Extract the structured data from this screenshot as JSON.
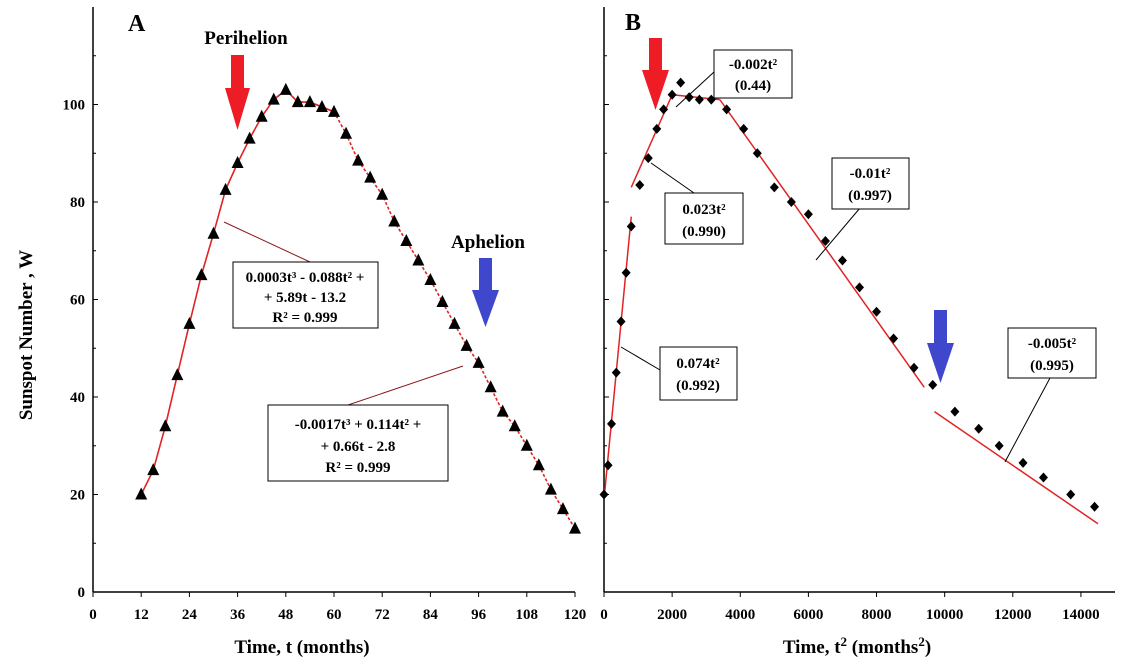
{
  "chart_data": [
    {
      "type": "scatter",
      "panel": "A",
      "xlabel": "Time, t (months)",
      "ylabel": "Sunspot Number , W",
      "xlim": [
        0,
        120
      ],
      "ylim": [
        0,
        120
      ],
      "x_ticks": [
        "0",
        "12",
        "24",
        "36",
        "48",
        "60",
        "72",
        "84",
        "96",
        "108",
        "120"
      ],
      "y_ticks": [
        "0",
        "20",
        "40",
        "60",
        "80",
        "100"
      ],
      "arrow_labels": {
        "red": "Perihelion",
        "blue": "Aphelion"
      },
      "annotations": [
        {
          "lines": [
            "0.0003t³ - 0.088t² +",
            "+ 5.89t - 13.2",
            "R² = 0.999"
          ]
        },
        {
          "lines": [
            "-0.0017t³ + 0.114t² +",
            "+ 0.66t - 2.8",
            "R² = 0.999"
          ]
        }
      ],
      "series": [
        {
          "marker": "triangle",
          "x": [
            12,
            15,
            18,
            21,
            24,
            27,
            30,
            33,
            36,
            39,
            42,
            45,
            48,
            51,
            54,
            57,
            60,
            63,
            66,
            69,
            72,
            75,
            78,
            81,
            84,
            87,
            90,
            93,
            96,
            99,
            102,
            105,
            108,
            111,
            114,
            117,
            120
          ],
          "y": [
            20,
            25,
            34,
            44.5,
            55,
            65,
            73.5,
            82.5,
            88,
            93,
            97.5,
            101,
            103,
            100.5,
            100.5,
            99.5,
            98.5,
            94,
            88.5,
            85,
            81.5,
            76,
            72,
            68,
            64,
            59.5,
            55,
            50.5,
            47,
            42,
            37,
            34,
            30,
            26,
            21,
            17,
            13
          ]
        }
      ],
      "fits": [
        {
          "name": "0.0003t³ - 0.088t² + + 5.89t - 13.2",
          "x_range": [
            12,
            60
          ]
        },
        {
          "name": "-0.0017t³ + 0.114t² + + 0.66t - 2.8",
          "x_range": [
            45,
            120
          ]
        }
      ]
    },
    {
      "type": "scatter",
      "panel": "B",
      "xlabel": "Time, t² (months²)",
      "ylabel": "",
      "xlim": [
        0,
        15000
      ],
      "ylim": [
        0,
        120
      ],
      "x_ticks": [
        "0",
        "2000",
        "4000",
        "6000",
        "8000",
        "10000",
        "12000",
        "14000"
      ],
      "annotations": [
        {
          "lines": [
            "-0.002t²",
            "(0.44)"
          ]
        },
        {
          "lines": [
            "0.023t²",
            "(0.990)"
          ]
        },
        {
          "lines": [
            "-0.01t²",
            "(0.997)"
          ]
        },
        {
          "lines": [
            "0.074t²",
            "(0.992)"
          ]
        },
        {
          "lines": [
            "-0.005t²",
            "(0.995)"
          ]
        }
      ],
      "series": [
        {
          "marker": "diamond",
          "x": [
            0,
            120,
            220,
            360,
            500,
            650,
            800,
            1050,
            1300,
            1550,
            1750,
            2000,
            2250,
            2500,
            2800,
            3150,
            3600,
            4100,
            4500,
            5000,
            5500,
            6000,
            6500,
            7000,
            7500,
            8000,
            8500,
            9100,
            9650,
            10300,
            11000,
            11600,
            12300,
            12900,
            13700,
            14400
          ],
          "y": [
            20,
            26,
            34.5,
            45,
            55.5,
            65.5,
            75,
            83.5,
            89,
            95,
            99,
            102,
            104.5,
            101.5,
            101,
            101,
            99,
            95,
            90,
            83,
            80,
            77.5,
            72,
            68,
            62.5,
            57.5,
            52,
            46,
            42.5,
            37,
            33.5,
            30,
            26.5,
            23.5,
            20,
            17.5
          ]
        }
      ],
      "fits": [
        {
          "name": "0.074t²",
          "x": [
            0,
            800
          ],
          "y": [
            19,
            77
          ]
        },
        {
          "name": "0.023t²",
          "x": [
            800,
            2000
          ],
          "y": [
            83,
            102
          ]
        },
        {
          "name": "-0.002t²",
          "x": [
            2000,
            3400
          ],
          "y": [
            102,
            101
          ]
        },
        {
          "name": "-0.01t²",
          "x": [
            3400,
            9400
          ],
          "y": [
            101,
            42
          ]
        },
        {
          "name": "-0.005t²",
          "x": [
            9700,
            14500
          ],
          "y": [
            37,
            14
          ]
        }
      ]
    }
  ],
  "colors": {
    "fit_line": "#e02424",
    "dots": "#8b1a1a",
    "arrow_red": "#ee1c25",
    "arrow_blue": "#3f48cc",
    "axis": "#000000"
  }
}
